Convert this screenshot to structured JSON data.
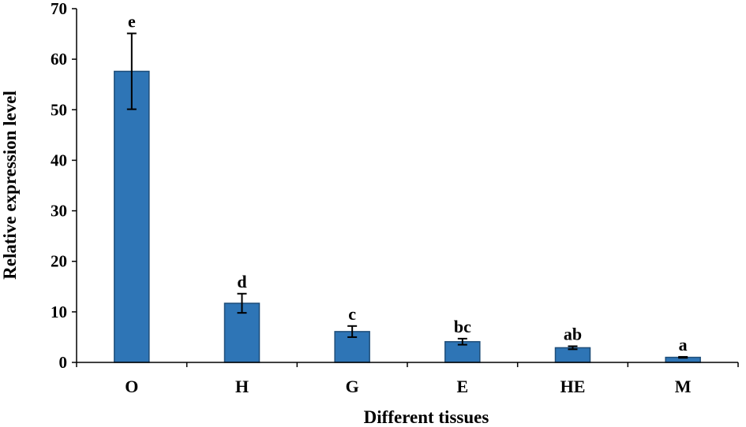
{
  "chart_data": {
    "type": "bar",
    "title": "",
    "xlabel": "Different tissues",
    "ylabel": "Relative expression level",
    "categories": [
      "O",
      "H",
      "G",
      "E",
      "HE",
      "M"
    ],
    "values": [
      57.6,
      11.7,
      6.1,
      4.1,
      2.9,
      1.0
    ],
    "errors": [
      7.5,
      1.9,
      1.1,
      0.6,
      0.3,
      0.1
    ],
    "significance_labels": [
      "e",
      "d",
      "c",
      "bc",
      "ab",
      "a"
    ],
    "ylim": [
      0,
      70
    ],
    "yticks": [
      "0",
      "10",
      "20",
      "30",
      "40",
      "50",
      "60",
      "70"
    ],
    "grid": false,
    "legend": "none",
    "bar_color": "#2e75b6",
    "bar_edge_color": "#1f4e79",
    "axis_color": "#000000"
  }
}
